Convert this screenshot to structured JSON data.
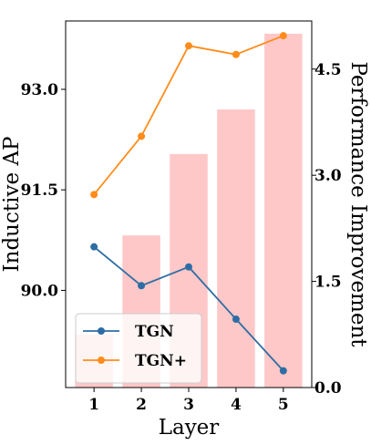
{
  "chart_data": {
    "type": "bar",
    "xlabel": "Layer",
    "ylabel_left": "Inductive AP",
    "ylabel_right": "Performance Improvement",
    "categories": [
      1,
      2,
      3,
      4,
      5
    ],
    "category_labels": [
      "1",
      "2",
      "3",
      "4",
      "5"
    ],
    "bars": {
      "values": [
        0.75,
        2.15,
        3.3,
        3.93,
        5.0
      ],
      "axis": "right",
      "color": "#ffc8c8"
    },
    "series": [
      {
        "name": "TGN",
        "axis": "left",
        "color": "#2e6da4",
        "values": [
          90.65,
          90.07,
          90.35,
          89.57,
          88.8
        ]
      },
      {
        "name": "TGN+",
        "axis": "left",
        "color": "#ff8c1a",
        "values": [
          91.43,
          92.3,
          93.65,
          93.52,
          93.8
        ]
      }
    ],
    "left_axis": {
      "ylim": [
        88.55,
        94.02
      ],
      "ticks": [
        90.0,
        91.5,
        93.0
      ],
      "tick_labels": [
        "90.0",
        "91.5",
        "93.0"
      ]
    },
    "right_axis": {
      "ylim": [
        0.0,
        5.18
      ],
      "ticks": [
        0.0,
        1.5,
        3.0,
        4.5
      ],
      "tick_labels": [
        "0.0",
        "1.5",
        "3.0",
        "4.5"
      ]
    },
    "xlim": [
      0.4,
      5.6
    ],
    "legend": {
      "position": "lower-left",
      "entries": [
        "TGN",
        "TGN+"
      ]
    },
    "grid": false
  }
}
